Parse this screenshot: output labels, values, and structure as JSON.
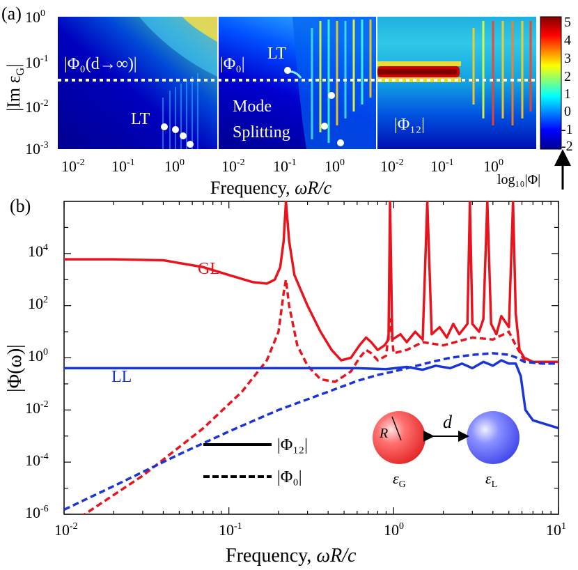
{
  "panel_a": {
    "label": "(a)",
    "ylabel": "|Im ε",
    "ylabel_sub": "G",
    "ylabel_tail": "|",
    "y_ticks": [
      {
        "base": "10",
        "exp": "0"
      },
      {
        "base": "10",
        "exp": "-1"
      },
      {
        "base": "10",
        "exp": "-2"
      },
      {
        "base": "10",
        "exp": "-3"
      }
    ],
    "x_ticks": [
      {
        "base": "10",
        "exp": "-2"
      },
      {
        "base": "10",
        "exp": "-1"
      },
      {
        "base": "10",
        "exp": "0"
      }
    ],
    "xlabel_pre": "Frequency, ",
    "xlabel_var": "ωR/c",
    "subplots": [
      {
        "label": "|Φ₀(d→∞)|",
        "annotations": [
          "LT"
        ]
      },
      {
        "label": "|Φ₀|",
        "annotations": [
          "LT",
          "Mode",
          "Splitting"
        ]
      },
      {
        "label": "|Φ₁₂|",
        "annotations": []
      }
    ],
    "colorbar": {
      "ticks": [
        "5",
        "4",
        "3",
        "2",
        "1",
        "0",
        "-1",
        "-2"
      ],
      "label": "log₁₀|Φ|",
      "colors": [
        "#7f0000",
        "#ff0000",
        "#ffff00",
        "#00ffff",
        "#0000ff",
        "#00008f"
      ]
    }
  },
  "chart_data": {
    "type": "line",
    "panel": "(b)",
    "xlabel_pre": "Frequency, ",
    "xlabel_var": "ωR/c",
    "ylabel": "|Φ(ω)|",
    "x_scale": "log",
    "y_scale": "log",
    "xlim": [
      0.01,
      10
    ],
    "ylim": [
      1e-06,
      1000000.0
    ],
    "x_ticks": [
      {
        "base": "10",
        "exp": "-2"
      },
      {
        "base": "10",
        "exp": "-1"
      },
      {
        "base": "10",
        "exp": "0"
      },
      {
        "base": "10",
        "exp": "1"
      }
    ],
    "y_ticks": [
      {
        "base": "10",
        "exp": "4"
      },
      {
        "base": "10",
        "exp": "2"
      },
      {
        "base": "10",
        "exp": "0"
      },
      {
        "base": "10",
        "exp": "-2"
      },
      {
        "base": "10",
        "exp": "-4"
      },
      {
        "base": "10",
        "exp": "-6"
      }
    ],
    "curve_labels": {
      "GL": "GL",
      "LL": "LL"
    },
    "legend": {
      "solid": "|Φ₁₂|",
      "dashed": "|Φ₀|"
    },
    "inset": {
      "R": "R",
      "d": "d",
      "eps_G": "ε",
      "eps_G_sub": "G",
      "eps_L": "ε",
      "eps_L_sub": "L"
    },
    "series": [
      {
        "key": "GL_solid",
        "color": "#e8141d",
        "style": "solid",
        "points": [
          [
            0.01,
            6000
          ],
          [
            0.02,
            6000
          ],
          [
            0.04,
            5500
          ],
          [
            0.07,
            3000
          ],
          [
            0.1,
            1500
          ],
          [
            0.14,
            800
          ],
          [
            0.17,
            700
          ],
          [
            0.19,
            1000
          ],
          [
            0.205,
            3000
          ],
          [
            0.215,
            30000
          ],
          [
            0.222,
            1000000
          ],
          [
            0.232,
            30000
          ],
          [
            0.25,
            1500
          ],
          [
            0.3,
            100
          ],
          [
            0.36,
            10
          ],
          [
            0.42,
            2
          ],
          [
            0.48,
            0.8
          ],
          [
            0.55,
            1
          ],
          [
            0.62,
            3
          ],
          [
            0.68,
            6
          ],
          [
            0.73,
            4
          ],
          [
            0.8,
            2
          ],
          [
            0.88,
            3
          ],
          [
            0.93,
            5
          ],
          [
            0.95,
            1000000
          ],
          [
            0.98,
            5
          ],
          [
            1.1,
            8
          ],
          [
            1.2,
            4
          ],
          [
            1.35,
            10
          ],
          [
            1.5,
            5
          ],
          [
            1.6,
            1000000
          ],
          [
            1.7,
            8
          ],
          [
            1.9,
            15
          ],
          [
            2.1,
            6
          ],
          [
            2.3,
            20
          ],
          [
            2.5,
            8
          ],
          [
            2.8,
            20
          ],
          [
            2.9,
            1000000
          ],
          [
            3.0,
            20
          ],
          [
            3.3,
            10
          ],
          [
            3.5,
            30
          ],
          [
            3.7,
            1000000
          ],
          [
            3.9,
            20
          ],
          [
            4.2,
            8
          ],
          [
            4.5,
            40
          ],
          [
            5.0,
            15
          ],
          [
            5.3,
            1000000
          ],
          [
            5.5,
            50
          ],
          [
            5.8,
            2
          ],
          [
            6.2,
            1
          ],
          [
            7,
            0.7
          ],
          [
            10,
            0.7
          ]
        ]
      },
      {
        "key": "GL_dashed",
        "color": "#e8141d",
        "style": "dashed",
        "points": [
          [
            0.01,
            3e-07
          ],
          [
            0.03,
            3e-05
          ],
          [
            0.07,
            0.002
          ],
          [
            0.12,
            0.05
          ],
          [
            0.17,
            0.8
          ],
          [
            0.2,
            10
          ],
          [
            0.215,
            300
          ],
          [
            0.222,
            1000
          ],
          [
            0.232,
            100
          ],
          [
            0.26,
            3
          ],
          [
            0.3,
            0.5
          ],
          [
            0.36,
            0.15
          ],
          [
            0.44,
            0.12
          ],
          [
            0.55,
            0.3
          ],
          [
            0.62,
            1
          ],
          [
            0.68,
            2
          ],
          [
            0.73,
            1.5
          ],
          [
            0.8,
            0.8
          ],
          [
            0.9,
            1.2
          ],
          [
            0.95,
            30
          ],
          [
            1.0,
            1.5
          ],
          [
            1.2,
            2
          ],
          [
            1.5,
            4
          ],
          [
            2,
            3
          ],
          [
            3,
            6
          ],
          [
            4,
            5
          ],
          [
            5,
            10
          ],
          [
            5.5,
            3
          ],
          [
            6.2,
            0.8
          ],
          [
            8,
            0.6
          ],
          [
            10,
            0.6
          ]
        ]
      },
      {
        "key": "LL_solid",
        "color": "#1a35d6",
        "style": "solid",
        "points": [
          [
            0.01,
            0.4
          ],
          [
            0.1,
            0.4
          ],
          [
            0.3,
            0.4
          ],
          [
            0.6,
            0.4
          ],
          [
            0.9,
            0.37
          ],
          [
            1.2,
            0.45
          ],
          [
            1.5,
            0.35
          ],
          [
            1.8,
            0.5
          ],
          [
            2.2,
            0.4
          ],
          [
            2.6,
            0.6
          ],
          [
            3,
            0.4
          ],
          [
            3.5,
            0.7
          ],
          [
            4,
            0.5
          ],
          [
            4.5,
            0.8
          ],
          [
            5,
            0.6
          ],
          [
            5.5,
            0.6
          ],
          [
            5.9,
            0.2
          ],
          [
            6.3,
            0.01
          ],
          [
            7,
            0.004
          ],
          [
            10,
            0.002
          ]
        ]
      },
      {
        "key": "LL_dashed",
        "color": "#1a35d6",
        "style": "dashed",
        "points": [
          [
            0.01,
            1.5e-06
          ],
          [
            0.02,
            1.2e-05
          ],
          [
            0.05,
            0.0002
          ],
          [
            0.1,
            0.0015
          ],
          [
            0.2,
            0.01
          ],
          [
            0.4,
            0.05
          ],
          [
            0.6,
            0.13
          ],
          [
            0.8,
            0.22
          ],
          [
            1,
            0.3
          ],
          [
            1.3,
            0.45
          ],
          [
            1.7,
            0.7
          ],
          [
            2.2,
            1
          ],
          [
            3,
            1.3
          ],
          [
            4,
            1.5
          ],
          [
            5,
            1.3
          ],
          [
            5.6,
            1
          ],
          [
            6.2,
            0.7
          ],
          [
            8,
            0.6
          ],
          [
            10,
            0.6
          ]
        ]
      }
    ]
  }
}
